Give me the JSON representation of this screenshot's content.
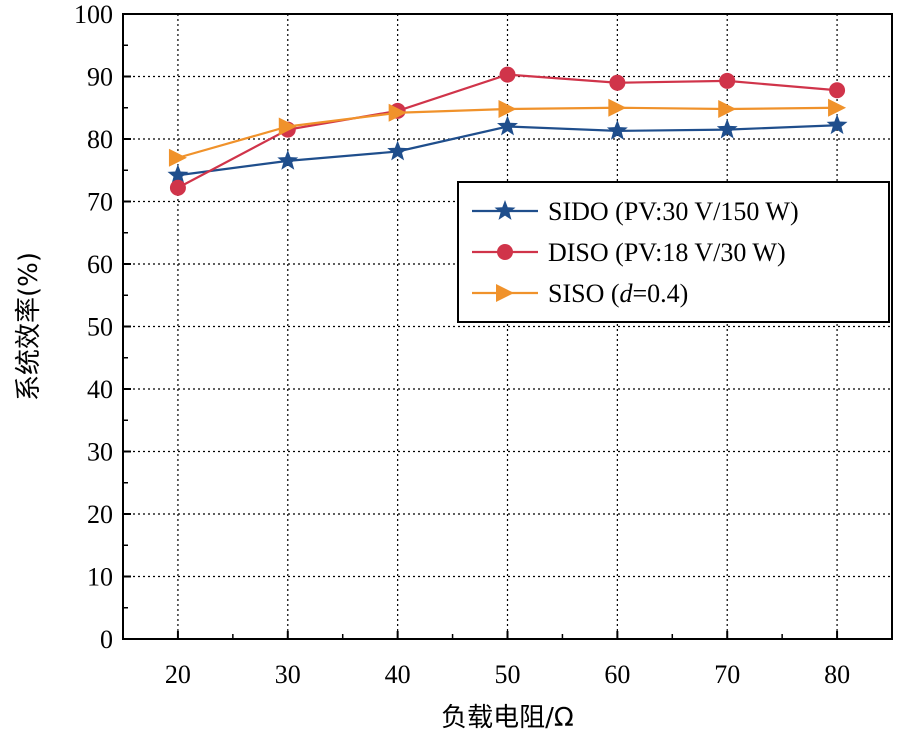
{
  "chart_data": {
    "type": "line",
    "xlabel": "负载电阻/Ω",
    "ylabel": "系统效率(%)",
    "x": [
      20,
      30,
      40,
      50,
      60,
      70,
      80
    ],
    "xticks": [
      "20",
      "30",
      "40",
      "50",
      "60",
      "70",
      "80"
    ],
    "xlim": [
      15,
      85
    ],
    "yticks": [
      "0",
      "10",
      "20",
      "30",
      "40",
      "50",
      "60",
      "70",
      "80",
      "90",
      "100"
    ],
    "ylim": [
      0,
      100
    ],
    "grid": true,
    "legend_position": "center-right",
    "series": [
      {
        "name": "SIDO (PV:30 V/150 W)",
        "label_main": "SIDO (PV:30 V/150 W)",
        "color": "#1f4e8c",
        "marker": "star",
        "values": [
          74.2,
          76.5,
          78.0,
          82.0,
          81.3,
          81.5,
          82.2
        ]
      },
      {
        "name": "DISO (PV:18 V/30 W)",
        "label_main": "DISO (PV:18 V/30 W)",
        "color": "#d0344a",
        "marker": "circle",
        "values": [
          72.2,
          81.5,
          84.5,
          90.3,
          89.0,
          89.3,
          87.8
        ]
      },
      {
        "name": "SISO (d=0.4)",
        "label_pre": "SISO (",
        "label_italic": "d",
        "label_post": "=0.4)",
        "color": "#f0922b",
        "marker": "triangle-right",
        "values": [
          77.0,
          82.0,
          84.2,
          84.8,
          85.0,
          84.8,
          85.0
        ]
      }
    ]
  }
}
